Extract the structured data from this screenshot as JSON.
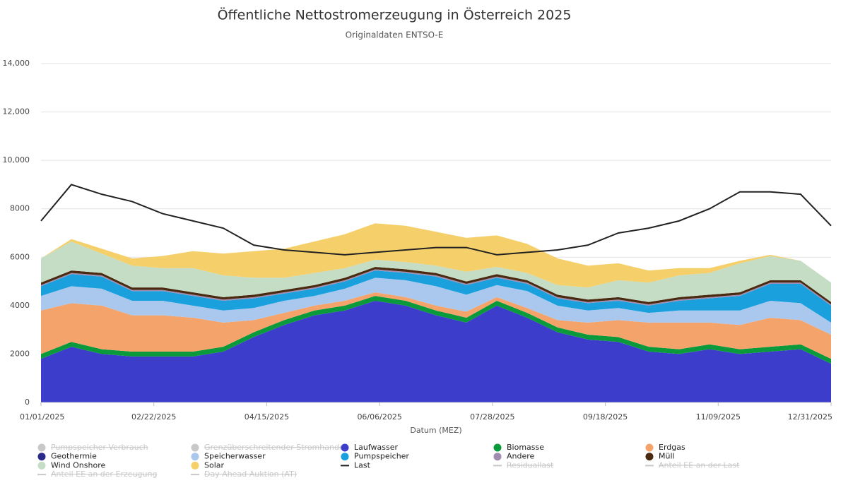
{
  "chart_data": {
    "type": "stacked-area",
    "title": "Öffentliche Nettostromerzeugung in Österreich 2025",
    "subtitle": "Originaldaten ENTSO-E",
    "x_label": "Datum (MEZ)",
    "x": [
      "2025-01-01",
      "2025-01-15",
      "2025-01-29",
      "2025-02-12",
      "2025-02-26",
      "2025-03-12",
      "2025-03-26",
      "2025-04-09",
      "2025-04-23",
      "2025-05-07",
      "2025-05-21",
      "2025-06-04",
      "2025-06-18",
      "2025-07-02",
      "2025-07-16",
      "2025-07-30",
      "2025-08-13",
      "2025-08-27",
      "2025-09-10",
      "2025-09-24",
      "2025-10-08",
      "2025-10-22",
      "2025-11-05",
      "2025-11-19",
      "2025-12-03",
      "2025-12-17",
      "2025-12-31"
    ],
    "xlim": [
      "2025-01-01",
      "2025-12-31"
    ],
    "xticks": [
      {
        "value": "2025-01-01",
        "label": "01/01/2025"
      },
      {
        "value": "2025-02-22",
        "label": "02/22/2025"
      },
      {
        "value": "2025-04-15",
        "label": "04/15/2025"
      },
      {
        "value": "2025-06-06",
        "label": "06/06/2025"
      },
      {
        "value": "2025-07-28",
        "label": "07/28/2025"
      },
      {
        "value": "2025-09-18",
        "label": "09/18/2025"
      },
      {
        "value": "2025-11-09",
        "label": "11/09/2025"
      },
      {
        "value": "2025-12-31",
        "label": "12/31/2025"
      }
    ],
    "ylim": [
      0,
      14000
    ],
    "yticks": [
      0,
      2000,
      4000,
      6000,
      8000,
      {
        "value": 10000,
        "label": "10,000"
      },
      {
        "value": 12000,
        "label": "12,000"
      },
      {
        "value": 14000,
        "label": "14,000"
      }
    ],
    "grid": true,
    "series": [
      {
        "name": "Pumpspeicher Verbrauch",
        "color": "#c8c8c8",
        "kind": "area",
        "visible": false
      },
      {
        "name": "Grenzüberschreitender Stromhandel",
        "color": "#c8c8c8",
        "kind": "area",
        "visible": false
      },
      {
        "name": "Laufwasser",
        "color": "#3d3dcc",
        "kind": "area",
        "visible": true,
        "values": [
          1800,
          2300,
          2000,
          1900,
          1900,
          1900,
          2100,
          2700,
          3200,
          3600,
          3800,
          4200,
          4000,
          3600,
          3300,
          4000,
          3500,
          2900,
          2600,
          2500,
          2100,
          2000,
          2200,
          2000,
          2100,
          2200,
          1600
        ]
      },
      {
        "name": "Biomasse",
        "color": "#0a9a3c",
        "kind": "area",
        "visible": true,
        "values": [
          200,
          200,
          200,
          200,
          200,
          200,
          200,
          200,
          200,
          200,
          200,
          200,
          200,
          200,
          200,
          200,
          200,
          200,
          200,
          200,
          200,
          200,
          200,
          200,
          200,
          200,
          200
        ]
      },
      {
        "name": "Erdgas",
        "color": "#f4a46a",
        "kind": "area",
        "visible": true,
        "values": [
          1800,
          1600,
          1800,
          1500,
          1500,
          1400,
          1000,
          500,
          300,
          200,
          200,
          150,
          150,
          200,
          250,
          150,
          200,
          300,
          500,
          700,
          1000,
          1100,
          900,
          1000,
          1200,
          1000,
          1000
        ]
      },
      {
        "name": "Geothermie",
        "color": "#2a2a8a",
        "kind": "area",
        "visible": true,
        "values": [
          0,
          0,
          0,
          0,
          0,
          0,
          0,
          0,
          0,
          0,
          0,
          0,
          0,
          0,
          0,
          0,
          0,
          0,
          0,
          0,
          0,
          0,
          0,
          0,
          0,
          0,
          0
        ]
      },
      {
        "name": "Speicherwasser",
        "color": "#aac8ee",
        "kind": "area",
        "visible": true,
        "values": [
          600,
          700,
          700,
          600,
          600,
          500,
          500,
          500,
          500,
          400,
          500,
          600,
          700,
          800,
          700,
          500,
          700,
          600,
          500,
          500,
          400,
          500,
          500,
          600,
          700,
          700,
          500
        ]
      },
      {
        "name": "Pumpspeicher",
        "color": "#1aa0dc",
        "kind": "area",
        "visible": true,
        "values": [
          400,
          500,
          500,
          400,
          400,
          400,
          400,
          400,
          300,
          300,
          300,
          300,
          300,
          400,
          400,
          300,
          300,
          300,
          300,
          300,
          300,
          400,
          500,
          600,
          700,
          800,
          700
        ]
      },
      {
        "name": "Andere",
        "color": "#a08cb0",
        "kind": "area",
        "visible": true,
        "values": [
          50,
          50,
          50,
          50,
          50,
          50,
          50,
          50,
          50,
          50,
          50,
          50,
          50,
          50,
          50,
          50,
          50,
          50,
          50,
          50,
          50,
          50,
          50,
          50,
          50,
          50,
          50
        ]
      },
      {
        "name": "Müll",
        "color": "#4a2a10",
        "kind": "area",
        "visible": true,
        "values": [
          100,
          100,
          100,
          100,
          100,
          100,
          100,
          100,
          100,
          100,
          100,
          100,
          100,
          100,
          100,
          100,
          100,
          100,
          100,
          100,
          100,
          100,
          100,
          100,
          100,
          100,
          100
        ]
      },
      {
        "name": "Wind Onshore",
        "color": "#c5dcc5",
        "kind": "area",
        "visible": true,
        "values": [
          1000,
          1200,
          800,
          900,
          800,
          1000,
          900,
          700,
          500,
          500,
          400,
          300,
          300,
          300,
          400,
          300,
          300,
          400,
          500,
          700,
          800,
          900,
          900,
          1200,
          1000,
          800,
          800
        ]
      },
      {
        "name": "Solar",
        "color": "#f5d06a",
        "kind": "area",
        "visible": true,
        "values": [
          0,
          100,
          200,
          300,
          500,
          700,
          900,
          1100,
          1200,
          1300,
          1400,
          1500,
          1500,
          1400,
          1400,
          1300,
          1200,
          1100,
          900,
          700,
          500,
          300,
          200,
          100,
          50,
          0,
          0
        ]
      },
      {
        "name": "Last",
        "color": "#222222",
        "kind": "line",
        "visible": true,
        "values": [
          7500,
          9000,
          8600,
          8300,
          7800,
          7500,
          7200,
          6500,
          6300,
          6200,
          6100,
          6200,
          6300,
          6400,
          6400,
          6100,
          6200,
          6300,
          6500,
          7000,
          7200,
          7500,
          8000,
          8700,
          8700,
          8600,
          7300
        ]
      },
      {
        "name": "Residuallast",
        "color": "#c8c8c8",
        "kind": "line",
        "visible": false
      },
      {
        "name": "Anteil EE an der Last",
        "color": "#c8c8c8",
        "kind": "line",
        "visible": false
      },
      {
        "name": "Anteil EE an der Erzeugung",
        "color": "#c8c8c8",
        "kind": "line",
        "visible": false
      },
      {
        "name": "Day Ahead Auktion (AT)",
        "color": "#c8c8c8",
        "kind": "line",
        "visible": false
      }
    ]
  }
}
